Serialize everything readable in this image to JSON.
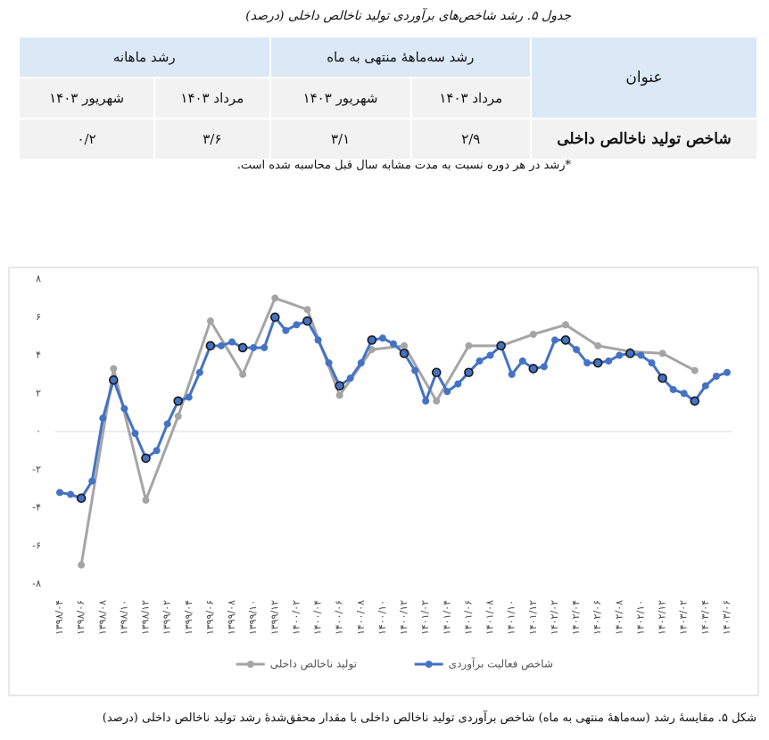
{
  "table_caption": "جدول ۵. رشد شاخص‌های برآوردی تولید ناخالص داخلی (درصد)",
  "table": {
    "header": [
      "عنوان",
      "رشد سه‌ماههٔ منتهی به ماه",
      "رشد ماهانه"
    ],
    "subheader": [
      "مرداد ۱۴۰۳",
      "شهریور ۱۴۰۳",
      "مرداد ۱۴۰۳",
      "شهریور ۱۴۰۳"
    ],
    "rows": [
      [
        "شاخص تولید ناخالص داخلی",
        "۲/۹",
        "۳/۱",
        "۳/۶",
        "۰/۲"
      ]
    ]
  },
  "footnote": "*رشد در هر دوره نسبت به مدت مشابه سال قبل محاسبه شده است.",
  "chart_data": {
    "type": "line",
    "categories": [
      "۱۳۹۸/۰۴",
      null,
      "۱۳۹۸/۰۶",
      null,
      "۱۳۹۸/۰۸",
      null,
      "۱۳۹۸/۱۰",
      null,
      "۱۳۹۸/۱۲",
      null,
      "۱۳۹۹/۰۲",
      null,
      "۱۳۹۹/۰۴",
      null,
      "۱۳۹۹/۰۶",
      null,
      "۱۳۹۹/۰۸",
      null,
      "۱۳۹۹/۱۰",
      null,
      "۱۳۹۹/۱۲",
      null,
      "۱۴۰۰/۰۲",
      null,
      "۱۴۰۰/۰۴",
      null,
      "۱۴۰۰/۰۶",
      null,
      "۱۴۰۰/۰۸",
      null,
      "۱۴۰۰/۱۰",
      null,
      "۱۴۰۰/۱۲",
      null,
      "۱۴۰۱/۰۲",
      null,
      "۱۴۰۱/۰۴",
      null,
      "۱۴۰۱/۰۶",
      null,
      "۱۴۰۱/۰۸",
      null,
      "۱۴۰۱/۱۰",
      null,
      "۱۴۰۱/۱۲",
      null,
      "۱۴۰۲/۰۲",
      null,
      "۱۴۰۲/۰۴",
      null,
      "۱۴۰۲/۰۶",
      null,
      "۱۴۰۲/۰۸",
      null,
      "۱۴۰۲/۱۰",
      null,
      "۱۴۰۲/۱۲",
      null,
      "۱۴۰۳/۰۲",
      null,
      "۱۴۰۳/۰۴",
      null,
      "۱۴۰۳/۰۶"
    ],
    "series": [
      {
        "name": "تولید ناخالص داخلی",
        "color": "#a5a5a5",
        "connect_gaps": true,
        "values": [
          null,
          null,
          -7.0,
          null,
          null,
          3.3,
          null,
          null,
          -3.6,
          null,
          null,
          0.8,
          null,
          null,
          5.8,
          null,
          null,
          3.0,
          null,
          null,
          7.0,
          null,
          null,
          6.4,
          null,
          null,
          1.9,
          null,
          null,
          4.3,
          null,
          null,
          4.5,
          null,
          null,
          1.6,
          null,
          null,
          4.5,
          null,
          null,
          4.5,
          null,
          null,
          5.1,
          null,
          null,
          5.6,
          null,
          null,
          4.5,
          null,
          null,
          4.2,
          null,
          null,
          4.1,
          null,
          null,
          3.2,
          null,
          null,
          null
        ]
      },
      {
        "name": "شاخص فعالیت برآوردی",
        "color": "#4472c4",
        "values": [
          -3.2,
          -3.3,
          -3.5,
          -2.6,
          0.7,
          2.7,
          1.2,
          -0.1,
          -1.4,
          -1.0,
          0.4,
          1.6,
          1.8,
          3.1,
          4.5,
          4.5,
          4.7,
          4.4,
          4.4,
          4.4,
          6.0,
          5.3,
          5.6,
          5.8,
          4.8,
          3.6,
          2.4,
          2.8,
          3.6,
          4.8,
          4.9,
          4.6,
          4.1,
          3.2,
          1.6,
          3.1,
          2.1,
          2.5,
          3.1,
          3.7,
          4.0,
          4.5,
          3.0,
          3.7,
          3.3,
          3.4,
          4.8,
          4.8,
          4.3,
          3.6,
          3.6,
          3.7,
          4.0,
          4.1,
          4.0,
          3.6,
          2.8,
          2.2,
          2.0,
          1.6,
          2.4,
          2.9,
          3.1
        ]
      }
    ],
    "ylim": [
      -8,
      8
    ],
    "yticks": [
      {
        "value": -8,
        "label": "-۸"
      },
      {
        "value": -6,
        "label": "-۶"
      },
      {
        "value": -4,
        "label": "-۴"
      },
      {
        "value": -2,
        "label": "-۲"
      },
      {
        "value": 0,
        "label": "۰"
      },
      {
        "value": 2,
        "label": "۲"
      },
      {
        "value": 4,
        "label": "۴"
      },
      {
        "value": 6,
        "label": "۶"
      },
      {
        "value": 8,
        "label": "۸"
      }
    ],
    "grid": false,
    "legend": "bottom"
  },
  "figure_caption": "شکل ۵. مقایسهٔ رشد (سه‌ماههٔ منتهی به ماه) شاخص برآوردی تولید ناخالص داخلی با مقدار محقق‌شدهٔ رشد تولید ناخالص داخلی (درصد)"
}
